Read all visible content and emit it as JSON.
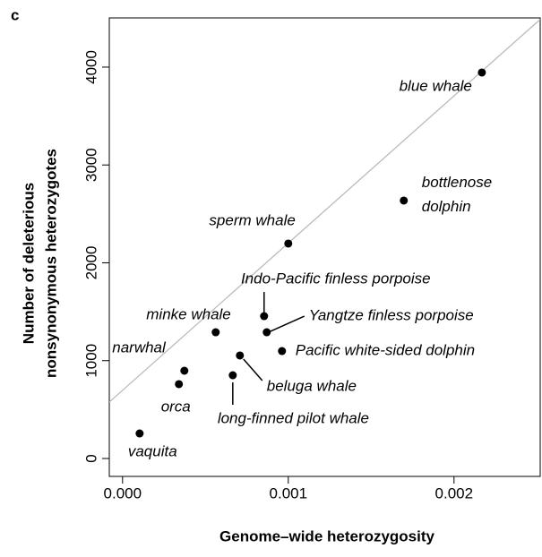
{
  "chart_data": {
    "type": "scatter",
    "panel_label": "c",
    "xlabel": "Genome–wide heterozygosity",
    "ylabel": [
      "Number of deleterious",
      "nonsynonymous heterozygotes"
    ],
    "xlim": [
      -8e-05,
      0.00252
    ],
    "ylim": [
      -183,
      4503
    ],
    "xticks": [
      {
        "value": 0,
        "label": "0.000"
      },
      {
        "value": 0.001,
        "label": "0.001"
      },
      {
        "value": 0.002,
        "label": "0.002"
      }
    ],
    "yticks": [
      0,
      1000,
      2000,
      3000,
      4000
    ],
    "color": "#000000",
    "reference_line": {
      "intercept": 697,
      "slope": 1504600,
      "color": "#bbbbbb"
    },
    "labels": [
      "blue whale",
      "bottlenose dolphin",
      "sperm whale",
      "Indo-Pacific finless porpoise",
      "Yangtze finless porpoise",
      "Pacific white-sided dolphin",
      "minke whale",
      "narwhal",
      "orca",
      "beluga whale",
      "long-finned pilot whale",
      "vaquita"
    ],
    "x": [
      0.002168,
      0.001697,
      0.001,
      0.000854,
      0.00087,
      0.000962,
      0.000562,
      0.000373,
      0.00034,
      0.000708,
      0.000665,
      0.000103
    ],
    "values": [
      3945,
      2636,
      2197,
      1455,
      1290,
      1098,
      1290,
      897,
      760,
      1053,
      851,
      256
    ]
  }
}
